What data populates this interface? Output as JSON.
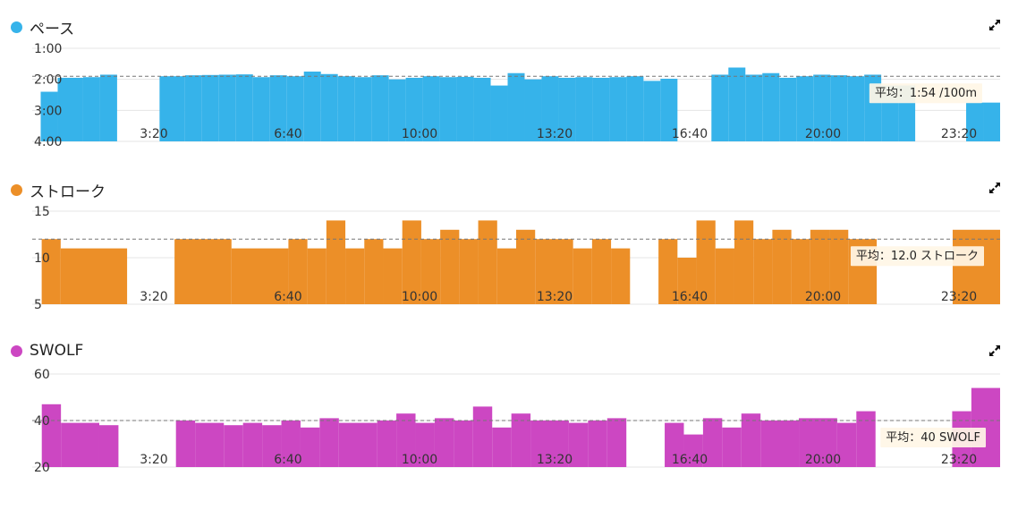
{
  "panels": [
    {
      "title": "ペース",
      "color": "#36b3ea",
      "avg_label": "平均：1:54 /100m",
      "chart_data": {
        "type": "bar",
        "y_ticks": [
          "1:00",
          "2:00",
          "3:00",
          "4:00"
        ],
        "ylim": [
          4.0,
          1.0
        ],
        "y_inverted": true,
        "x_ticks": [
          "3:20",
          "6:40",
          "10:00",
          "13:20",
          "16:40",
          "20:00",
          "23:20"
        ],
        "average": 1.9,
        "segments": [
          [
            1.0,
            3.0,
            2.4
          ],
          [
            3.0,
            6.0,
            1.95
          ],
          [
            6.0,
            8.0,
            1.93
          ],
          [
            8.0,
            10.0,
            1.85
          ],
          [
            15.0,
            18.0,
            1.9
          ],
          [
            18.0,
            20.0,
            1.87
          ],
          [
            20.0,
            22.0,
            1.86
          ],
          [
            22.0,
            24.0,
            1.85
          ],
          [
            24.0,
            26.0,
            1.84
          ],
          [
            26.0,
            28.0,
            1.93
          ],
          [
            28.0,
            30.0,
            1.87
          ],
          [
            30.0,
            32.0,
            1.9
          ],
          [
            32.0,
            34.0,
            1.75
          ],
          [
            34.0,
            36.0,
            1.83
          ],
          [
            36.0,
            38.0,
            1.9
          ],
          [
            38.0,
            40.0,
            1.93
          ],
          [
            40.0,
            42.0,
            1.87
          ],
          [
            42.0,
            44.0,
            2.0
          ],
          [
            44.0,
            46.0,
            1.95
          ],
          [
            46.0,
            48.0,
            1.9
          ],
          [
            48.0,
            50.0,
            1.93
          ],
          [
            50.0,
            52.0,
            1.92
          ],
          [
            52.0,
            54.0,
            1.95
          ],
          [
            54.0,
            56.0,
            2.2
          ],
          [
            56.0,
            58.0,
            1.8
          ],
          [
            58.0,
            60.0,
            2.0
          ],
          [
            60.0,
            62.0,
            1.9
          ],
          [
            62.0,
            64.0,
            1.95
          ],
          [
            64.0,
            66.0,
            1.93
          ],
          [
            66.0,
            68.0,
            1.95
          ],
          [
            68.0,
            70.0,
            1.93
          ],
          [
            70.0,
            72.0,
            1.9
          ],
          [
            72.0,
            74.0,
            2.05
          ],
          [
            74.0,
            76.0,
            1.98
          ],
          [
            80.0,
            82.0,
            1.85
          ],
          [
            82.0,
            84.0,
            1.62
          ],
          [
            84.0,
            86.0,
            1.85
          ],
          [
            86.0,
            88.0,
            1.8
          ],
          [
            88.0,
            90.0,
            1.95
          ],
          [
            90.0,
            92.0,
            1.9
          ],
          [
            92.0,
            94.0,
            1.85
          ],
          [
            94.0,
            96.0,
            1.87
          ],
          [
            96.0,
            98.0,
            1.9
          ],
          [
            98.0,
            100.0,
            1.85
          ],
          [
            100.0,
            102.0,
            2.2
          ],
          [
            102.0,
            104.0,
            2.2
          ],
          [
            110.0,
            112.0,
            2.75
          ],
          [
            112.0,
            114.0,
            2.75
          ]
        ]
      }
    },
    {
      "title": "ストローク",
      "color": "#ec8f28",
      "avg_label": "平均：12.0 ストローク",
      "chart_data": {
        "type": "bar",
        "y_ticks": [
          "15",
          "10",
          "5"
        ],
        "ylim": [
          5,
          15
        ],
        "x_ticks": [
          "3:20",
          "6:40",
          "10:00",
          "13:20",
          "16:40",
          "20:00",
          "23:20"
        ],
        "average": 12.0,
        "segments": [
          [
            1.0,
            3.0,
            12.0
          ],
          [
            3.0,
            10.0,
            11.0
          ],
          [
            15.0,
            21.0,
            12.0
          ],
          [
            21.0,
            27.0,
            11.0
          ],
          [
            27.0,
            29.0,
            12.0
          ],
          [
            29.0,
            31.0,
            11.0
          ],
          [
            31.0,
            33.0,
            14.0
          ],
          [
            33.0,
            35.0,
            11.0
          ],
          [
            35.0,
            37.0,
            12.0
          ],
          [
            37.0,
            39.0,
            11.0
          ],
          [
            39.0,
            41.0,
            14.0
          ],
          [
            41.0,
            43.0,
            12.0
          ],
          [
            43.0,
            45.0,
            13.0
          ],
          [
            45.0,
            47.0,
            12.0
          ],
          [
            47.0,
            49.0,
            14.0
          ],
          [
            49.0,
            51.0,
            11.0
          ],
          [
            51.0,
            53.0,
            13.0
          ],
          [
            53.0,
            57.0,
            12.0
          ],
          [
            57.0,
            59.0,
            11.0
          ],
          [
            59.0,
            61.0,
            12.0
          ],
          [
            61.0,
            63.0,
            11.0
          ],
          [
            66.0,
            68.0,
            12.0
          ],
          [
            68.0,
            70.0,
            10.0
          ],
          [
            70.0,
            72.0,
            14.0
          ],
          [
            72.0,
            74.0,
            11.0
          ],
          [
            74.0,
            76.0,
            14.0
          ],
          [
            76.0,
            78.0,
            12.0
          ],
          [
            78.0,
            80.0,
            13.0
          ],
          [
            80.0,
            82.0,
            12.0
          ],
          [
            82.0,
            84.0,
            13.0
          ],
          [
            84.0,
            86.0,
            13.0
          ],
          [
            86.0,
            89.0,
            12.0
          ],
          [
            97.0,
            102.0,
            13.0
          ]
        ]
      }
    },
    {
      "title": "SWOLF",
      "color": "#cc47c2",
      "avg_label": "平均：40 SWOLF",
      "chart_data": {
        "type": "bar",
        "y_ticks": [
          "60",
          "40",
          "20"
        ],
        "ylim": [
          20,
          60
        ],
        "x_ticks": [
          "3:20",
          "6:40",
          "10:00",
          "13:20",
          "16:40",
          "20:00",
          "23:20"
        ],
        "average": 40,
        "segments": [
          [
            1.0,
            3.0,
            47
          ],
          [
            3.0,
            7.0,
            39
          ],
          [
            7.0,
            9.0,
            38
          ],
          [
            15.0,
            17.0,
            40
          ],
          [
            17.0,
            20.0,
            39
          ],
          [
            20.0,
            22.0,
            38
          ],
          [
            22.0,
            24.0,
            39
          ],
          [
            24.0,
            26.0,
            38
          ],
          [
            26.0,
            28.0,
            40
          ],
          [
            28.0,
            30.0,
            37
          ],
          [
            30.0,
            32.0,
            41
          ],
          [
            32.0,
            36.0,
            39
          ],
          [
            36.0,
            38.0,
            40
          ],
          [
            38.0,
            40.0,
            43
          ],
          [
            40.0,
            42.0,
            39
          ],
          [
            42.0,
            44.0,
            41
          ],
          [
            44.0,
            46.0,
            40
          ],
          [
            46.0,
            48.0,
            46
          ],
          [
            48.0,
            50.0,
            37
          ],
          [
            50.0,
            52.0,
            43
          ],
          [
            52.0,
            56.0,
            40
          ],
          [
            56.0,
            58.0,
            39
          ],
          [
            58.0,
            60.0,
            40
          ],
          [
            60.0,
            62.0,
            41
          ],
          [
            66.0,
            68.0,
            39
          ],
          [
            68.0,
            70.0,
            34
          ],
          [
            70.0,
            72.0,
            41
          ],
          [
            72.0,
            74.0,
            37
          ],
          [
            74.0,
            76.0,
            43
          ],
          [
            76.0,
            80.0,
            40
          ],
          [
            80.0,
            84.0,
            41
          ],
          [
            84.0,
            86.0,
            39
          ],
          [
            86.0,
            88.0,
            44
          ],
          [
            96.0,
            98.0,
            44
          ],
          [
            98.0,
            101.0,
            54
          ]
        ]
      }
    }
  ]
}
